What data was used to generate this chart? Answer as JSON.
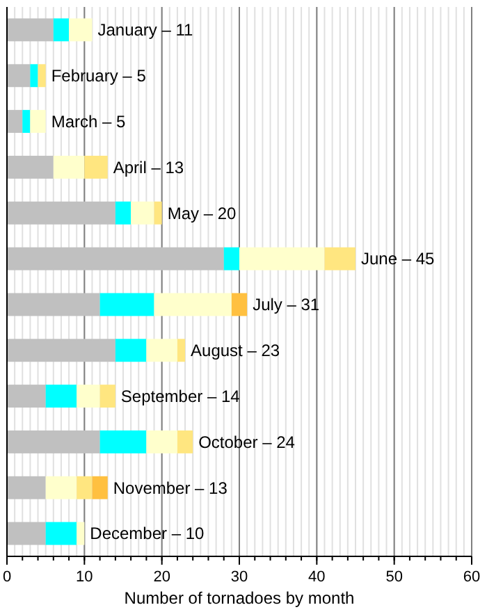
{
  "chart_data": {
    "type": "bar",
    "orientation": "horizontal",
    "stacked": true,
    "xlabel": "Number of tornadoes by month",
    "categories": [
      "January – 11",
      "February – 5",
      "March – 5",
      "April – 13",
      "May – 20",
      "June – 45",
      "July – 31",
      "August – 23",
      "September – 14",
      "October – 24",
      "November – 13",
      "December – 10"
    ],
    "series": [
      {
        "color": "#c0c0c0",
        "values": [
          6,
          3,
          2,
          6,
          14,
          28,
          12,
          14,
          5,
          12,
          5,
          5
        ]
      },
      {
        "color": "#00ffff",
        "values": [
          2,
          1,
          1,
          0,
          2,
          2,
          7,
          4,
          4,
          6,
          0,
          4
        ]
      },
      {
        "color": "#ffffcc",
        "values": [
          3,
          0,
          2,
          4,
          3,
          11,
          10,
          4,
          3,
          4,
          4,
          1
        ]
      },
      {
        "color": "#ffe680",
        "values": [
          0,
          1,
          0,
          3,
          1,
          4,
          0,
          1,
          2,
          2,
          2,
          0
        ]
      },
      {
        "color": "#ffc040",
        "values": [
          0,
          0,
          0,
          0,
          0,
          0,
          2,
          0,
          0,
          0,
          2,
          0
        ]
      }
    ],
    "xlim": [
      0,
      60
    ],
    "xticks": [
      0,
      10,
      20,
      30,
      40,
      50,
      60
    ],
    "grid": "x"
  }
}
